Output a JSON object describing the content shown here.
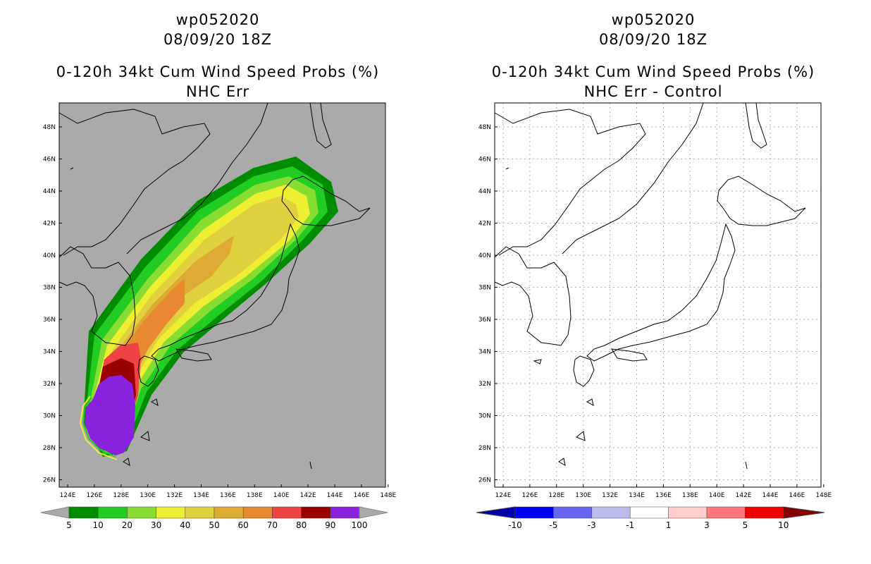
{
  "left_panel": {
    "storm_id": "wp052020",
    "datetime": "08/09/20 18Z",
    "product": "0-120h 34kt Cum Wind Speed Probs (%)",
    "subtitle": "NHC Err",
    "colorbar": {
      "labels": [
        "5",
        "10",
        "20",
        "30",
        "40",
        "50",
        "60",
        "70",
        "80",
        "90",
        "100"
      ],
      "colors": [
        "#008c00",
        "#22cc22",
        "#88dd33",
        "#eeee33",
        "#e0d040",
        "#ddaa33",
        "#e88830",
        "#ee4444",
        "#990000",
        "#8822dd"
      ]
    }
  },
  "right_panel": {
    "storm_id": "wp052020",
    "datetime": "08/09/20 18Z",
    "product": "0-120h 34kt Cum Wind Speed Probs (%)",
    "subtitle": "NHC Err - Control",
    "colorbar": {
      "labels": [
        "-10",
        "-5",
        "-3",
        "-1",
        "1",
        "3",
        "5",
        "10"
      ],
      "colors": [
        "#0000aa",
        "#0000ee",
        "#6666ee",
        "#bbbbee",
        "#ffffff",
        "#ffcccc",
        "#ff7777",
        "#ee0000",
        "#880000"
      ]
    }
  },
  "axes": {
    "lon_labels": [
      "124E",
      "126E",
      "128E",
      "130E",
      "132E",
      "134E",
      "136E",
      "138E",
      "140E",
      "142E",
      "144E",
      "146E",
      "148E"
    ],
    "lat_labels": [
      "48N",
      "46N",
      "44N",
      "42N",
      "40N",
      "38N",
      "36N",
      "34N",
      "32N",
      "30N",
      "28N",
      "26N"
    ]
  },
  "colors": {
    "background_gray": "#aaaaaa",
    "coast": "#000000",
    "grid": "#b0b0b0"
  }
}
